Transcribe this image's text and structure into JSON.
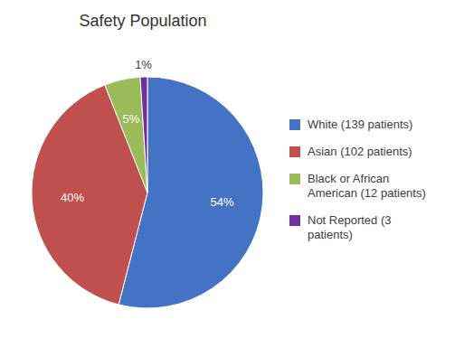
{
  "chart_data": {
    "type": "pie",
    "title": "Safety Population",
    "categories": [
      "White (139 patients)",
      "Asian (102 patients)",
      "Black or African\nAmerican (12 patients)",
      "Not Reported (3\npatients)"
    ],
    "values": [
      54,
      40,
      5,
      1
    ],
    "value_labels": [
      "54%",
      "40%",
      "5%",
      "1%"
    ],
    "colors": [
      "#4472C4",
      "#C0504D",
      "#9BBB59",
      "#7030A0"
    ],
    "data_labels": true,
    "legend": "right"
  }
}
